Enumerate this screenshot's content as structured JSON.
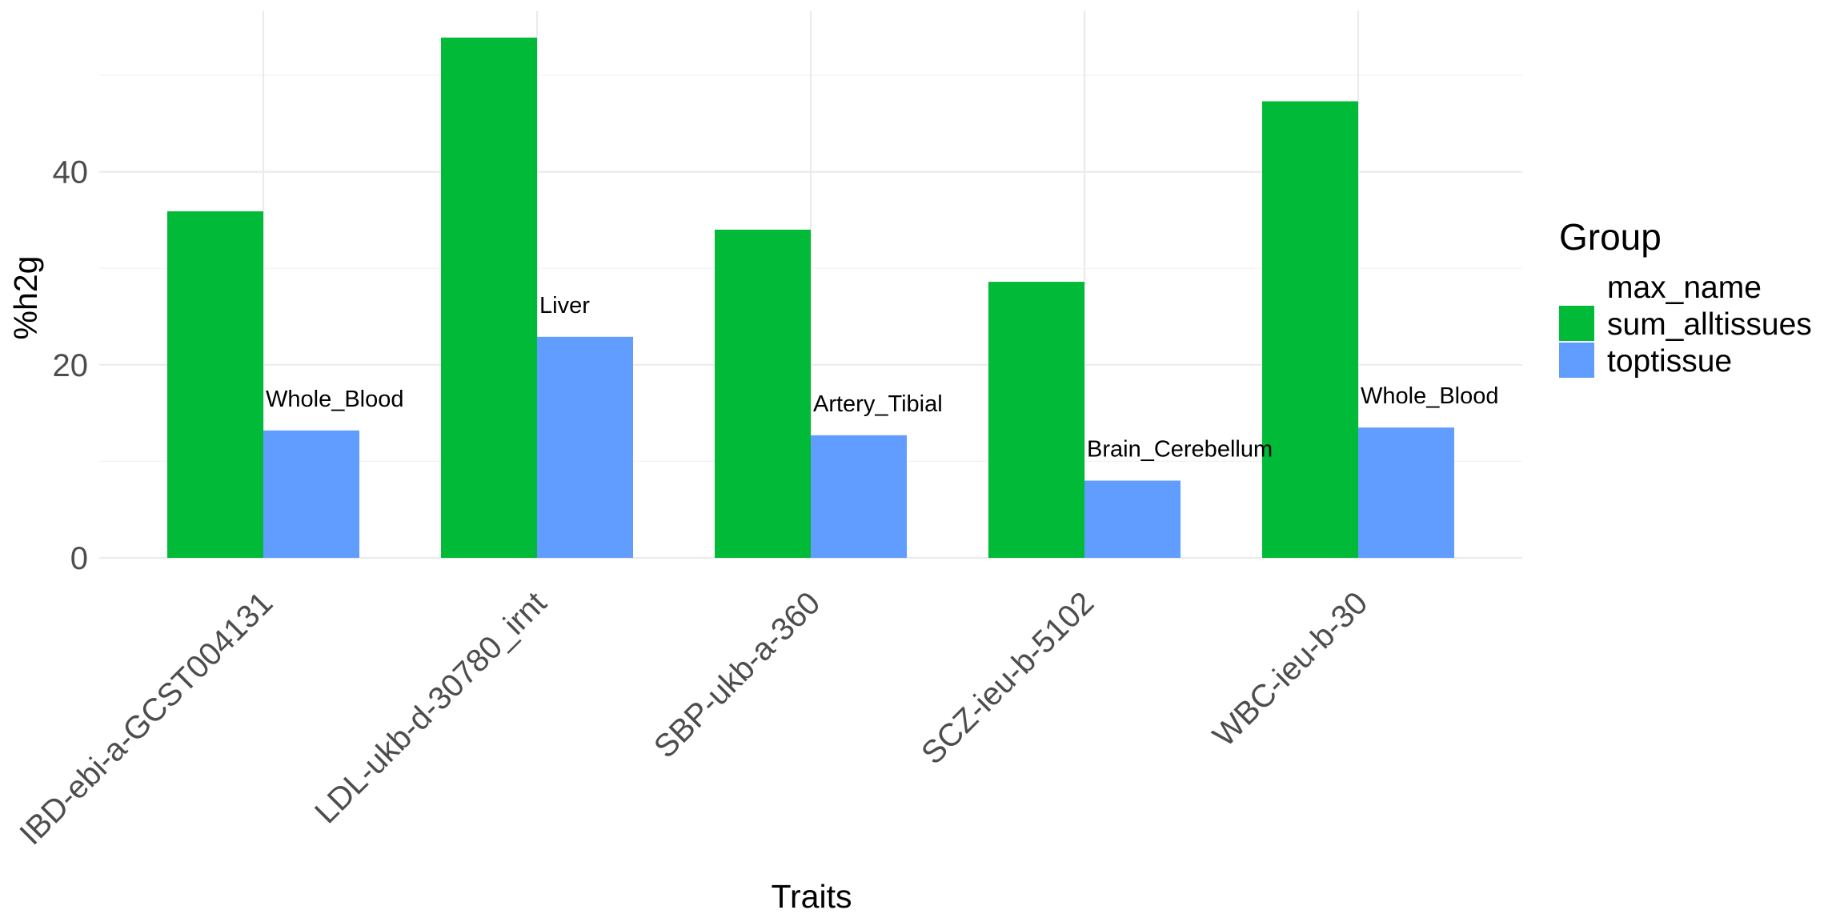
{
  "chart_data": {
    "type": "bar",
    "title": "",
    "xlabel": "Traits",
    "ylabel": "%h2g",
    "ylim": [
      0,
      58
    ],
    "yticks": [
      0,
      20,
      40
    ],
    "grid": true,
    "legend_position": "right",
    "legend_title": "Group",
    "categories": [
      "IBD-ebi-a-GCST004131",
      "LDL-ukb-d-30780_irnt",
      "SBP-ukb-a-360",
      "SCZ-ieu-b-5102",
      "WBC-ieu-b-30"
    ],
    "series": [
      {
        "name": "sum_alltissues",
        "color": "#00BA38",
        "values": [
          35.9,
          53.9,
          34.0,
          28.6,
          47.3
        ]
      },
      {
        "name": "toptissue",
        "color": "#619CFF",
        "values": [
          13.2,
          22.9,
          12.7,
          8.0,
          13.5
        ]
      }
    ],
    "legend_entries": [
      {
        "label": "max_name",
        "color": ""
      },
      {
        "label": "sum_alltissues",
        "color": "#00BA38"
      },
      {
        "label": "toptissue",
        "color": "#619CFF"
      }
    ],
    "bar_labels": [
      "Whole_Blood",
      "Liver",
      "Artery_Tibial",
      "Brain_Cerebellum",
      "Whole_Blood"
    ]
  }
}
